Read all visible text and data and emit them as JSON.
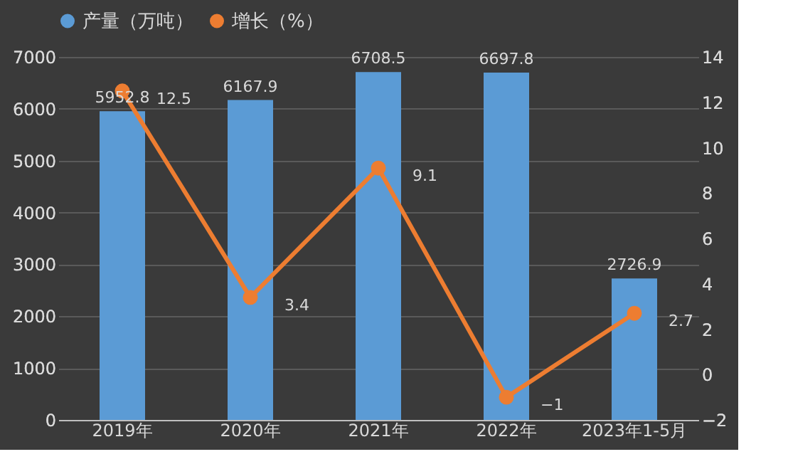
{
  "chart_data": {
    "type": "bar",
    "categories": [
      "2019年",
      "2020年",
      "2021年",
      "2022年",
      "2023年1-5月"
    ],
    "series": [
      {
        "name": "产量（万吨）",
        "color": "#5b9bd5",
        "values": [
          5952.8,
          6167.9,
          6708.5,
          6697.8,
          2726.9
        ]
      },
      {
        "name": "增长（%）",
        "type": "line",
        "axis": "y2",
        "color": "#ed7d31",
        "values": [
          12.5,
          3.4,
          9.1,
          -1,
          2.7
        ]
      }
    ],
    "ylim": [
      0,
      7000
    ],
    "yticks": [
      0,
      1000,
      2000,
      3000,
      4000,
      5000,
      6000,
      7000
    ],
    "y2lim": [
      -2,
      14
    ],
    "y2ticks": [
      -2,
      0,
      2,
      4,
      6,
      8,
      10,
      12,
      14
    ],
    "grid": "y",
    "legend": "top",
    "marker": "circle",
    "line_style": "solid",
    "data_labels": true
  }
}
